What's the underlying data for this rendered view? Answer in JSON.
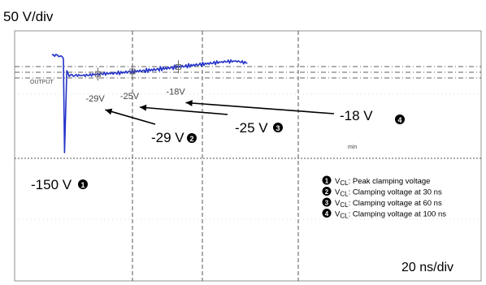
{
  "chart_data": {
    "type": "line",
    "title": "",
    "xlabel": "",
    "ylabel": "",
    "y_scale_label": "50 V/div",
    "x_scale_label": "20 ns/div",
    "grid": true,
    "trace_label": "OUTPUT",
    "ground_label": "min",
    "series": [
      {
        "x_ns": [
          -10,
          -4,
          0,
          1,
          3,
          5,
          10,
          20,
          30,
          40,
          50,
          60,
          70,
          80,
          90,
          100,
          110,
          120,
          130,
          140,
          150,
          160
        ],
        "volts": [
          0,
          0,
          -5,
          -150,
          -25,
          -31,
          -31,
          -31,
          -29,
          -28,
          -27,
          -25,
          -24,
          -22,
          -20,
          -18,
          -16,
          -14,
          -12,
          -10,
          -9,
          -12
        ]
      }
    ],
    "markers": [
      {
        "num": "1",
        "x_ns": 1,
        "volts": -150,
        "scope_text": "",
        "callout": "-150 V"
      },
      {
        "num": "2",
        "x_ns": 30,
        "volts": -29,
        "scope_text": "-29V",
        "callout": "-29 V"
      },
      {
        "num": "3",
        "x_ns": 60,
        "volts": -25,
        "scope_text": "-25V",
        "callout": "-25 V"
      },
      {
        "num": "4",
        "x_ns": 100,
        "volts": -18,
        "scope_text": "-18V",
        "callout": "-18 V"
      }
    ],
    "legend": [
      {
        "num": "1",
        "text": ": Peak clamping voltage"
      },
      {
        "num": "2",
        "text": ": Clamping voltage at 30 ns"
      },
      {
        "num": "3",
        "text": ": Clamping voltage at 60 ns"
      },
      {
        "num": "4",
        "text": ": Clamping voltage at 100 ns"
      }
    ],
    "legend_symbol": "V",
    "legend_subscript": "CL",
    "colors": {
      "trace": "#2433c8",
      "grid": "#555555",
      "reference": "#606060"
    }
  }
}
